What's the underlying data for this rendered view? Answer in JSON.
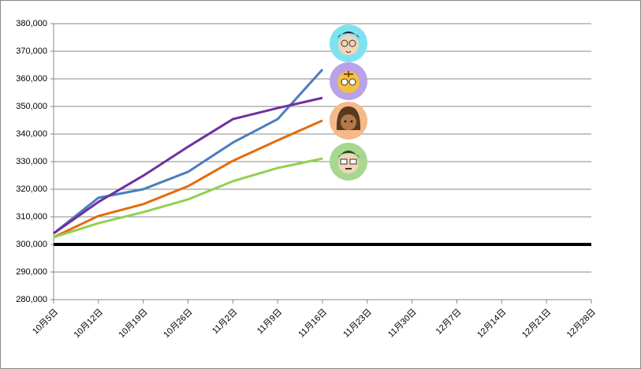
{
  "chart_data": {
    "type": "line",
    "categories": [
      "10月5日",
      "10月12日",
      "10月19日",
      "10月26日",
      "11月2日",
      "11月9日",
      "11月16日",
      "11月23日",
      "11月30日",
      "12月7日",
      "12月14日",
      "12月21日",
      "12月28日"
    ],
    "series": [
      {
        "color": "#4a7ebb",
        "values": [
          304000,
          316900,
          320000,
          326300,
          336900,
          345400,
          363400,
          null,
          null,
          null,
          null,
          null,
          null
        ]
      },
      {
        "color": "#7030a0",
        "values": [
          304000,
          315400,
          324900,
          335400,
          345400,
          349400,
          353100,
          null,
          null,
          null,
          null,
          null,
          null
        ]
      },
      {
        "color": "#e46c0a",
        "values": [
          302600,
          310300,
          314600,
          321100,
          330300,
          337700,
          344900,
          null,
          null,
          null,
          null,
          null,
          null
        ]
      },
      {
        "color": "#92d050",
        "values": [
          302600,
          307700,
          311700,
          316300,
          322900,
          327700,
          331100,
          null,
          null,
          null,
          null,
          null,
          null
        ]
      }
    ],
    "reference_line": 300000,
    "ylim": [
      280000,
      380000
    ],
    "yticks": [
      {
        "value": 280000,
        "label": "280,000"
      },
      {
        "value": 290000,
        "label": "290,000"
      },
      {
        "value": 300000,
        "label": "300,000"
      },
      {
        "value": 310000,
        "label": "310,000"
      },
      {
        "value": 320000,
        "label": "320,000"
      },
      {
        "value": 330000,
        "label": "330,000"
      },
      {
        "value": 340000,
        "label": "340,000"
      },
      {
        "value": 350000,
        "label": "350,000"
      },
      {
        "value": 360000,
        "label": "360,000"
      },
      {
        "value": 370000,
        "label": "370,000"
      },
      {
        "value": 380000,
        "label": "380,000"
      }
    ],
    "grid": true
  }
}
